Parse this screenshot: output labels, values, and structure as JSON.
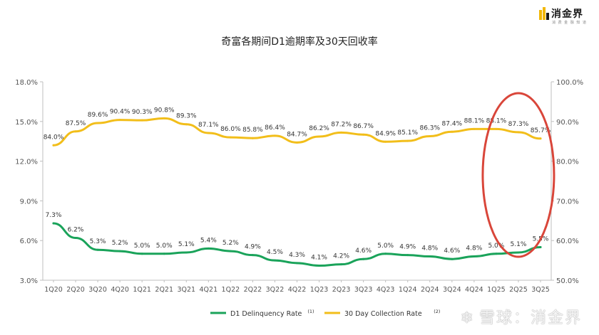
{
  "logo": {
    "name": "消金界",
    "tagline": "消 费 金 融 知 道",
    "icon": "bars-logo-icon",
    "color": "#f2b705"
  },
  "watermark": {
    "text": "雪球：消金界",
    "icon": "snowball-icon"
  },
  "chart_data": {
    "type": "line",
    "title": "奇富各期间D1逾期率及30天回收率",
    "categories": [
      "1Q20",
      "2Q20",
      "3Q20",
      "4Q20",
      "1Q21",
      "2Q21",
      "3Q21",
      "4Q21",
      "1Q22",
      "2Q22",
      "3Q22",
      "4Q22",
      "1Q23",
      "2Q23",
      "3Q23",
      "4Q23",
      "1Q24",
      "2Q24",
      "3Q24",
      "4Q24",
      "1Q25",
      "2Q25",
      "3Q25"
    ],
    "series": [
      {
        "name": "D1 Delinquency Rate",
        "footnote": "(1)",
        "axis": "left",
        "color": "#1aa35a",
        "values": [
          7.3,
          6.2,
          5.3,
          5.2,
          5.0,
          5.0,
          5.1,
          5.4,
          5.2,
          4.9,
          4.5,
          4.3,
          4.1,
          4.2,
          4.6,
          5.0,
          4.9,
          4.8,
          4.6,
          4.8,
          5.0,
          5.1,
          5.5
        ],
        "labels": [
          "7.3%",
          "6.2%",
          "5.3%",
          "5.2%",
          "5.0%",
          "5.0%",
          "5.1%",
          "5.4%",
          "5.2%",
          "4.9%",
          "4.5%",
          "4.3%",
          "4.1%",
          "4.2%",
          "4.6%",
          "5.0%",
          "4.9%",
          "4.8%",
          "4.6%",
          "4.8%",
          "5.0%",
          "5.1%",
          "5.5%"
        ]
      },
      {
        "name": "30 Day Collection Rate",
        "footnote": "(2)",
        "axis": "right",
        "color": "#f2be1a",
        "values": [
          84.0,
          87.5,
          89.6,
          90.4,
          90.3,
          90.8,
          89.3,
          87.1,
          86.0,
          85.8,
          86.4,
          84.7,
          86.2,
          87.2,
          86.7,
          84.9,
          85.1,
          86.3,
          87.4,
          88.1,
          88.1,
          87.3,
          85.7
        ],
        "labels": [
          "84.0%",
          "87.5%",
          "89.6%",
          "90.4%",
          "90.3%",
          "90.8%",
          "89.3%",
          "87.1%",
          "86.0%",
          "85.8%",
          "86.4%",
          "84.7%",
          "86.2%",
          "87.2%",
          "86.7%",
          "84.9%",
          "85.1%",
          "86.3%",
          "87.4%",
          "88.1%",
          "88.1%",
          "87.3%",
          "85.7%"
        ]
      }
    ],
    "y_left": {
      "range": [
        3.0,
        18.0
      ],
      "ticks": [
        3.0,
        6.0,
        9.0,
        12.0,
        15.0,
        18.0
      ],
      "tick_labels": [
        "3.0%",
        "6.0%",
        "9.0%",
        "12.0%",
        "15.0%",
        "18.0%"
      ]
    },
    "y_right": {
      "range": [
        50.0,
        100.0
      ],
      "ticks": [
        50.0,
        60.0,
        70.0,
        80.0,
        90.0,
        100.0
      ],
      "tick_labels": [
        "50.0%",
        "60.0%",
        "70.0%",
        "80.0%",
        "90.0%",
        "100.0%"
      ]
    },
    "grid": false,
    "legend_position": "bottom",
    "annotation": {
      "type": "ellipse",
      "color": "#d9463a",
      "covers_categories": [
        "1Q25",
        "2Q25",
        "3Q25"
      ]
    }
  }
}
